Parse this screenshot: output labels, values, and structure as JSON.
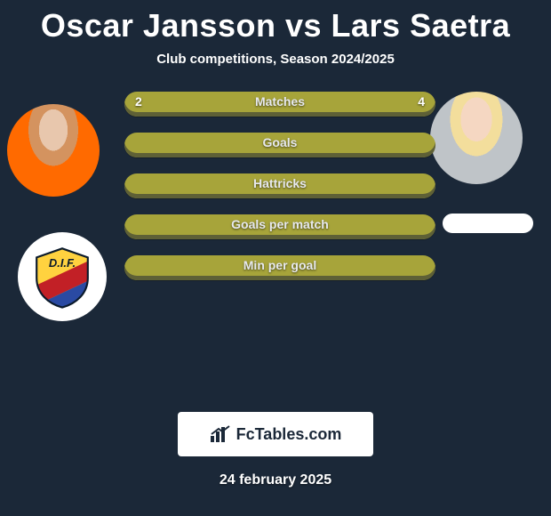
{
  "title": "Oscar Jansson vs Lars Saetra",
  "subtitle": "Club competitions, Season 2024/2025",
  "date": "24 february 2025",
  "footer_badge": "FcTables.com",
  "colors": {
    "background": "#1b2838",
    "bar": "#a7a43a",
    "bar_shadow": "#5e6036",
    "text": "#ffffff",
    "team_left_stripes": [
      "#ffd23f",
      "#c22026",
      "#2a4aa3"
    ]
  },
  "bars": [
    {
      "label": "Matches",
      "left": "2",
      "right": "4"
    },
    {
      "label": "Goals",
      "left": "",
      "right": ""
    },
    {
      "label": "Hattricks",
      "left": "",
      "right": ""
    },
    {
      "label": "Goals per match",
      "left": "",
      "right": ""
    },
    {
      "label": "Min per goal",
      "left": "",
      "right": ""
    }
  ]
}
